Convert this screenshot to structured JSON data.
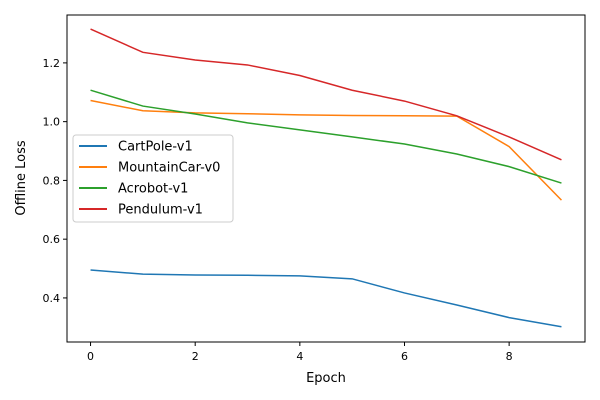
{
  "chart_data": {
    "type": "line",
    "title": "",
    "xlabel": "Epoch",
    "ylabel": "Offline Loss",
    "xlim": [
      -0.45,
      9.45
    ],
    "ylim": [
      0.25,
      1.363
    ],
    "xticks": [
      0,
      2,
      4,
      6,
      8
    ],
    "yticks": [
      0.4,
      0.6,
      0.8,
      1.0,
      1.2
    ],
    "ytick_labels": [
      "0.4",
      "0.6",
      "0.8",
      "1.0",
      "1.2"
    ],
    "grid": false,
    "legend_position": "center-left",
    "x": [
      0,
      1,
      2,
      3,
      4,
      5,
      6,
      7,
      8,
      9
    ],
    "series": [
      {
        "name": "CartPole-v1",
        "color": "#1f77b4",
        "values": [
          0.495,
          0.481,
          0.478,
          0.477,
          0.475,
          0.465,
          0.417,
          0.376,
          0.333,
          0.302
        ]
      },
      {
        "name": "MountainCar-v0",
        "color": "#ff7f0e",
        "values": [
          1.072,
          1.037,
          1.03,
          1.027,
          1.023,
          1.021,
          1.02,
          1.019,
          0.915,
          0.733
        ]
      },
      {
        "name": "Acrobot-v1",
        "color": "#2ca02c",
        "values": [
          1.107,
          1.053,
          1.026,
          0.996,
          0.972,
          0.948,
          0.924,
          0.89,
          0.847,
          0.791
        ]
      },
      {
        "name": "Pendulum-v1",
        "color": "#d62728",
        "values": [
          1.315,
          1.236,
          1.21,
          1.193,
          1.157,
          1.107,
          1.07,
          1.02,
          0.948,
          0.87
        ]
      }
    ]
  }
}
